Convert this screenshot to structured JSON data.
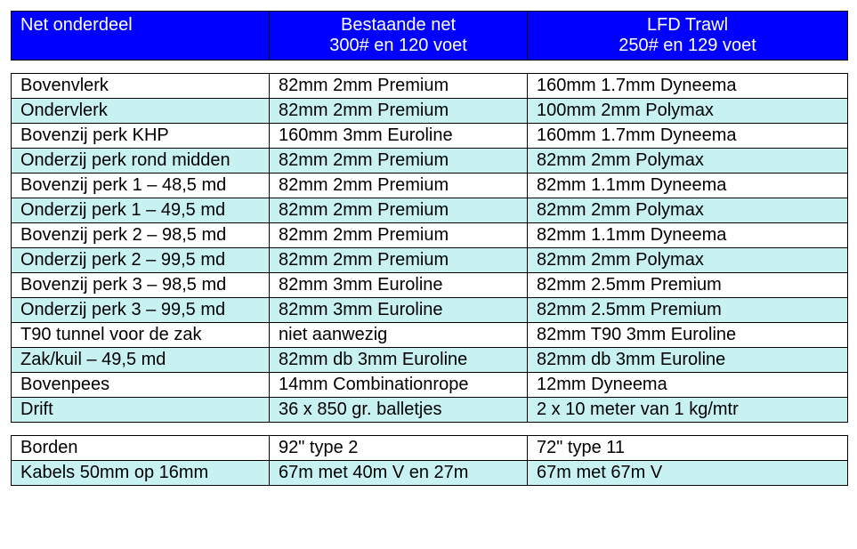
{
  "colors": {
    "header_bg": "#0000ff",
    "header_text": "#ffffff",
    "row_even_bg": "#ffffff",
    "row_odd_bg": "#c8f2f2",
    "border": "#000000"
  },
  "columns": [
    {
      "line1": "Net onderdeel",
      "line2": ""
    },
    {
      "line1": "Bestaande net",
      "line2": "300# en 120 voet"
    },
    {
      "line1": "LFD Trawl",
      "line2": "250# en 129 voet"
    }
  ],
  "section1": [
    [
      "Bovenvlerk",
      "82mm 2mm Premium",
      "160mm 1.7mm Dyneema"
    ],
    [
      "Ondervlerk",
      "82mm 2mm Premium",
      "100mm 2mm Polymax"
    ],
    [
      "Bovenzij perk KHP",
      "160mm 3mm Euroline",
      "160mm 1.7mm Dyneema"
    ],
    [
      "Onderzij perk rond midden",
      "82mm 2mm Premium",
      "82mm 2mm Polymax"
    ],
    [
      "Bovenzij perk 1 – 48,5 md",
      "82mm 2mm Premium",
      "82mm 1.1mm Dyneema"
    ],
    [
      "Onderzij perk 1 – 49,5 md",
      "82mm 2mm Premium",
      "82mm 2mm Polymax"
    ],
    [
      "Bovenzij perk 2 – 98,5 md",
      "82mm 2mm Premium",
      "82mm 1.1mm Dyneema"
    ],
    [
      "Onderzij perk 2 – 99,5 md",
      "82mm 2mm Premium",
      "82mm 2mm Polymax"
    ],
    [
      "Bovenzij perk 3 – 98,5 md",
      "82mm 3mm Euroline",
      "82mm 2.5mm Premium"
    ],
    [
      "Onderzij perk 3 – 99,5 md",
      "82mm 3mm Euroline",
      "82mm 2.5mm Premium"
    ],
    [
      "T90 tunnel voor de zak",
      "niet aanwezig",
      "82mm T90 3mm Euroline"
    ],
    [
      "Zak/kuil – 49,5 md",
      "82mm db 3mm Euroline",
      "82mm db 3mm Euroline"
    ],
    [
      "Bovenpees",
      "14mm Combinationrope",
      "12mm Dyneema"
    ],
    [
      "Drift",
      "36 x 850 gr. balletjes",
      "2 x 10 meter van 1 kg/mtr"
    ]
  ],
  "section2": [
    [
      "Borden",
      "92\" type 2",
      "72\" type 11"
    ],
    [
      "Kabels 50mm op 16mm",
      "67m met 40m V en 27m",
      "67m met 67m V"
    ]
  ]
}
